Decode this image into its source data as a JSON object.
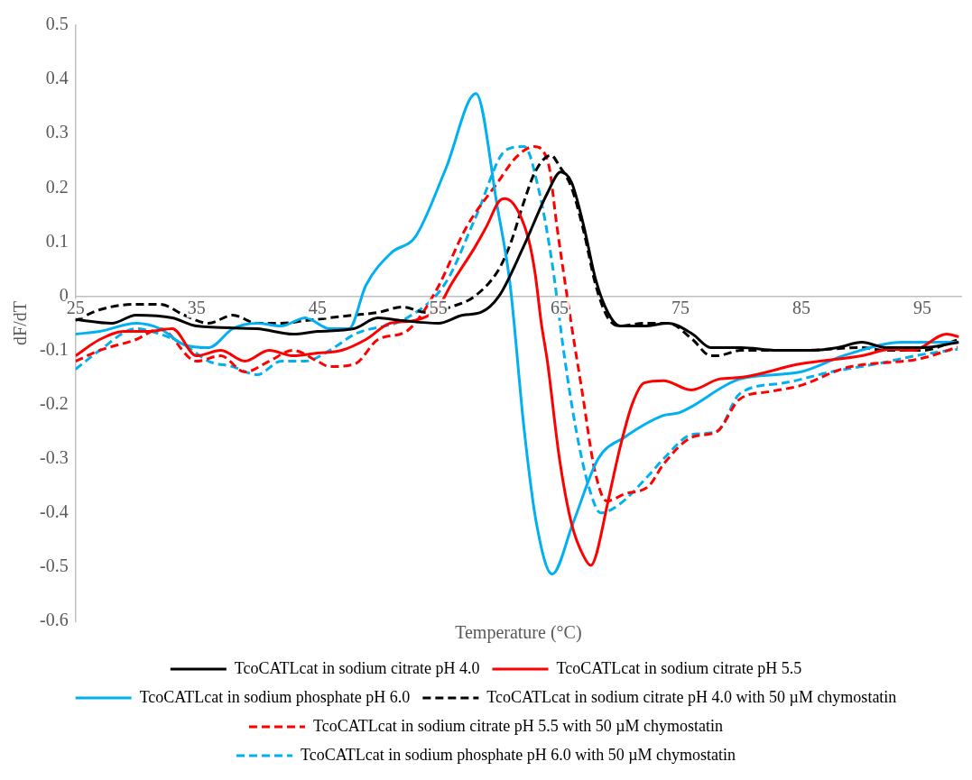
{
  "chart_data": {
    "type": "line",
    "xlabel": "Temperature (°C)",
    "ylabel": "dF/dT",
    "xlim": [
      25,
      98.2
    ],
    "xticks": [
      25,
      35,
      45,
      55,
      65,
      75,
      85,
      95
    ],
    "ylim": [
      -0.6,
      0.5
    ],
    "yticks": [
      -0.6,
      -0.5,
      -0.4,
      -0.3,
      -0.2,
      -0.1,
      0,
      0.1,
      0.2,
      0.3,
      0.4,
      0.5
    ],
    "grid": false,
    "legend": "bottom",
    "series": [
      {
        "name": "TcoCATLcat in sodium citrate pH 4.0",
        "color": "#000000",
        "line_style": "solid",
        "x": [
          25,
          28,
          30,
          33,
          35,
          40,
          43,
          45,
          48,
          50,
          52,
          55,
          57,
          58.5,
          60,
          62,
          64,
          65.1,
          66,
          67,
          68,
          69,
          70,
          72,
          74,
          76,
          77.5,
          80,
          83,
          86,
          88,
          90,
          92,
          95,
          98
        ],
        "values": [
          -0.043,
          -0.05,
          -0.035,
          -0.04,
          -0.055,
          -0.06,
          -0.07,
          -0.065,
          -0.06,
          -0.04,
          -0.045,
          -0.05,
          -0.035,
          -0.03,
          0,
          0.09,
          0.19,
          0.229,
          0.21,
          0.13,
          0.03,
          -0.03,
          -0.055,
          -0.055,
          -0.05,
          -0.07,
          -0.095,
          -0.095,
          -0.1,
          -0.1,
          -0.095,
          -0.085,
          -0.095,
          -0.095,
          -0.085
        ]
      },
      {
        "name": "TcoCATLcat in sodium citrate pH 5.5",
        "color": "#ff0000",
        "line_style": "solid",
        "x": [
          25,
          27,
          29,
          31,
          33,
          35,
          37,
          39,
          41,
          43,
          45,
          47,
          49,
          51,
          53,
          55,
          56,
          58,
          59,
          60,
          60.5,
          61.5,
          62.5,
          63,
          63.5,
          64,
          65,
          66,
          67,
          67.6,
          68,
          69,
          70,
          71,
          72,
          73.6,
          75.9,
          78.2,
          80,
          84.9,
          90,
          92.4,
          94.2,
          97,
          98
        ],
        "values": [
          -0.11,
          -0.08,
          -0.065,
          -0.065,
          -0.06,
          -0.11,
          -0.1,
          -0.12,
          -0.1,
          -0.11,
          -0.105,
          -0.1,
          -0.08,
          -0.05,
          -0.045,
          -0.02,
          0.02,
          0.09,
          0.13,
          0.175,
          0.18,
          0.16,
          0.1,
          0.04,
          -0.05,
          -0.12,
          -0.3,
          -0.42,
          -0.48,
          -0.497,
          -0.48,
          -0.38,
          -0.28,
          -0.2,
          -0.16,
          -0.156,
          -0.173,
          -0.153,
          -0.15,
          -0.125,
          -0.11,
          -0.098,
          -0.1,
          -0.07,
          -0.075
        ]
      },
      {
        "name": "TcoCATLcat in sodium phosphate pH 6.0",
        "color": "#00b0f0",
        "line_style": "solid",
        "x": [
          25,
          27,
          30,
          32,
          34,
          36,
          38,
          40,
          42,
          44,
          46,
          47.6,
          49,
          51.1,
          53.1,
          55.6,
          58.1,
          59.9,
          60.9,
          62.1,
          63.1,
          64.4,
          66.1,
          68.2,
          70.4,
          73.6,
          74.9,
          79.9,
          84.9,
          88.7,
          93.4,
          97.9
        ],
        "values": [
          -0.07,
          -0.065,
          -0.05,
          -0.06,
          -0.09,
          -0.095,
          -0.06,
          -0.05,
          -0.055,
          -0.04,
          -0.06,
          -0.06,
          0.02,
          0.08,
          0.11,
          0.235,
          0.374,
          0.16,
          0.025,
          -0.25,
          -0.42,
          -0.513,
          -0.42,
          -0.3,
          -0.26,
          -0.22,
          -0.215,
          -0.153,
          -0.14,
          -0.108,
          -0.085,
          -0.085
        ]
      },
      {
        "name": "TcoCATLcat in sodium citrate pH 4.0 with 50 µM chymostatin",
        "color": "#000000",
        "line_style": "dashed",
        "x": [
          25,
          27,
          30,
          32,
          34,
          36,
          38,
          40,
          42,
          44,
          46,
          48,
          50,
          52,
          54,
          56,
          58,
          60,
          61,
          62,
          63,
          64.3,
          65,
          66,
          67,
          68,
          69,
          70,
          72,
          74,
          76,
          77.5,
          78,
          80,
          85,
          90,
          92,
          95,
          98
        ],
        "values": [
          -0.045,
          -0.025,
          -0.015,
          -0.015,
          -0.035,
          -0.05,
          -0.035,
          -0.05,
          -0.05,
          -0.045,
          -0.04,
          -0.035,
          -0.03,
          -0.02,
          -0.03,
          -0.02,
          0,
          0.05,
          0.1,
          0.17,
          0.23,
          0.26,
          0.24,
          0.2,
          0.12,
          0.02,
          -0.04,
          -0.055,
          -0.05,
          -0.05,
          -0.08,
          -0.11,
          -0.11,
          -0.1,
          -0.1,
          -0.095,
          -0.1,
          -0.1,
          -0.08
        ]
      },
      {
        "name": "TcoCATLcat in sodium citrate pH 5.5 with 50 µM chymostatin",
        "color": "#ff0000",
        "line_style": "dashed",
        "x": [
          25,
          27,
          30,
          32,
          35,
          37,
          39,
          41,
          43,
          45,
          46,
          48.1,
          50,
          52.4,
          54.8,
          57.3,
          59.9,
          61.4,
          62.9,
          64.1,
          64.8,
          65.9,
          66.9,
          67.9,
          68.9,
          70.4,
          72.4,
          73.6,
          76,
          78,
          79.9,
          82.4,
          84.9,
          88.7,
          94.9,
          97.9
        ],
        "values": [
          -0.12,
          -0.1,
          -0.08,
          -0.06,
          -0.12,
          -0.11,
          -0.14,
          -0.12,
          -0.1,
          -0.12,
          -0.13,
          -0.125,
          -0.08,
          -0.064,
          0.01,
          0.127,
          0.21,
          0.256,
          0.276,
          0.243,
          0.127,
          -0.04,
          -0.18,
          -0.32,
          -0.378,
          -0.365,
          -0.35,
          -0.31,
          -0.26,
          -0.25,
          -0.19,
          -0.176,
          -0.165,
          -0.132,
          -0.115,
          -0.094
        ]
      },
      {
        "name": "TcoCATLcat in sodium phosphate pH 6.0 with 50 µM chymostatin",
        "color": "#00b0f0",
        "line_style": "dashed",
        "x": [
          25,
          27,
          30,
          32,
          34,
          36,
          38,
          40,
          42,
          44,
          46,
          48.1,
          52.4,
          55.6,
          58.1,
          60.6,
          62.1,
          63.3,
          64.4,
          65.4,
          66.4,
          67.4,
          68.4,
          69.9,
          72.4,
          73.6,
          76,
          78,
          79.9,
          83.6,
          87.4,
          91.2,
          94.9,
          97.9
        ],
        "values": [
          -0.135,
          -0.1,
          -0.06,
          -0.07,
          -0.09,
          -0.12,
          -0.13,
          -0.145,
          -0.12,
          -0.12,
          -0.1,
          -0.07,
          -0.04,
          0.025,
          0.147,
          0.27,
          0.276,
          0.195,
          0.06,
          -0.11,
          -0.25,
          -0.35,
          -0.4,
          -0.385,
          -0.33,
          -0.3,
          -0.255,
          -0.25,
          -0.18,
          -0.16,
          -0.14,
          -0.125,
          -0.108,
          -0.098
        ]
      }
    ]
  }
}
